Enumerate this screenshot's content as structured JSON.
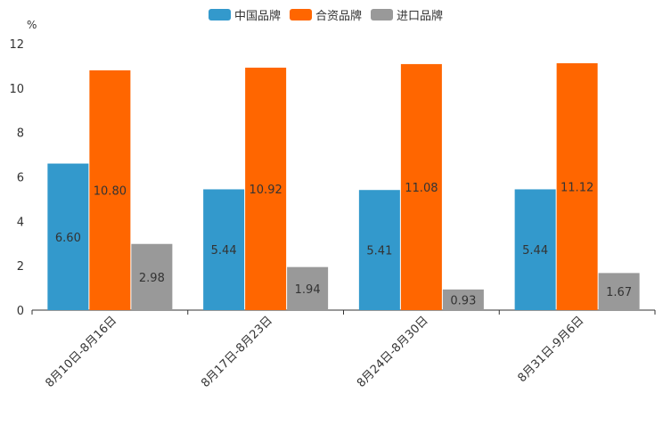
{
  "chart_data": {
    "type": "bar",
    "ylabel": "%",
    "ylim": [
      0,
      12
    ],
    "yticks": [
      0,
      2,
      4,
      6,
      8,
      10,
      12
    ],
    "categories": [
      "8月10日-8月16日",
      "8月17日-8月23日",
      "8月24日-8月30日",
      "8月31日-9月6日"
    ],
    "series": [
      {
        "name": "中国品牌",
        "color": "#3399cc",
        "values": [
          6.6,
          5.44,
          5.41,
          5.44
        ],
        "labels": [
          "6.60",
          "5.44",
          "5.41",
          "5.44"
        ]
      },
      {
        "name": "合资品牌",
        "color": "#ff6600",
        "values": [
          10.8,
          10.92,
          11.08,
          11.12
        ],
        "labels": [
          "10.80",
          "10.92",
          "11.08",
          "11.12"
        ]
      },
      {
        "name": "进口品牌",
        "color": "#999999",
        "values": [
          2.98,
          1.94,
          0.93,
          1.67
        ],
        "labels": [
          "2.98",
          "1.94",
          "0.93",
          "1.67"
        ]
      }
    ]
  }
}
